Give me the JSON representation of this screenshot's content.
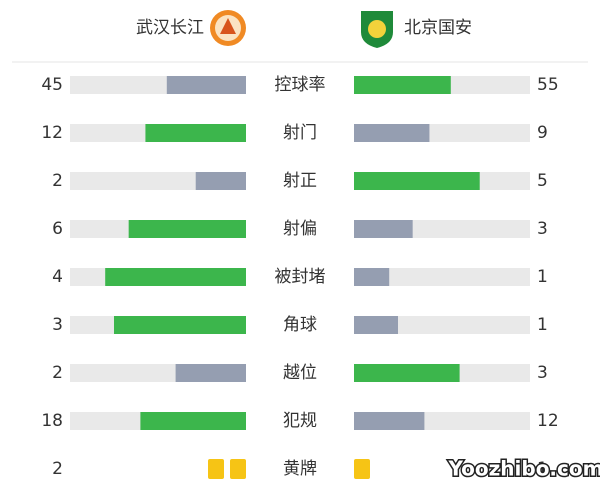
{
  "chart_data": {
    "type": "butterfly",
    "series": [
      {
        "name": "武汉长江",
        "values": [
          45,
          12,
          2,
          6,
          4,
          3,
          2,
          18
        ]
      },
      {
        "name": "北京国安",
        "values": [
          55,
          9,
          5,
          3,
          1,
          1,
          3,
          12
        ]
      }
    ],
    "categories": [
      "控球率",
      "射门",
      "射正",
      "射偏",
      "被封堵",
      "角球",
      "越位",
      "犯规"
    ],
    "colors": {
      "higher": "#3cb64c",
      "lower": "#959eb1",
      "track": "#e9e9e9"
    },
    "cards": {
      "category": "黄牌",
      "values": [
        2,
        1
      ],
      "color": "#f6c415"
    },
    "watermark": "Yoozhibo.com"
  }
}
